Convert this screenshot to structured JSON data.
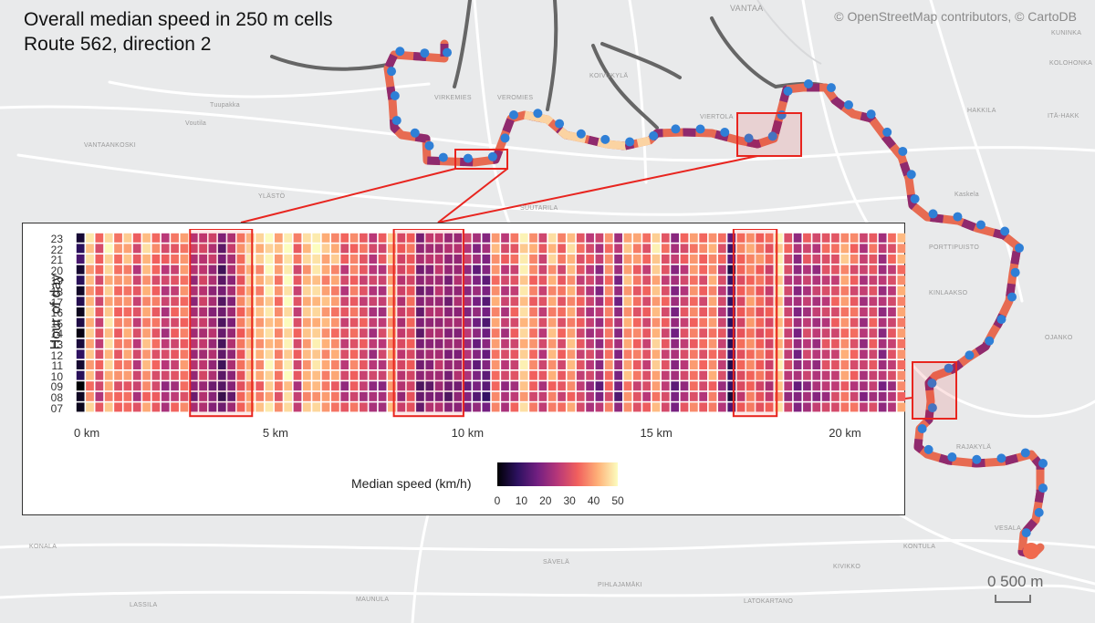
{
  "title_line1": "Overall median speed in 250 m cells",
  "title_line2": "Route 562, direction 2",
  "attribution": "© OpenStreetMap contributors, © CartoDB",
  "scale_label": "0  500 m",
  "place_names": {
    "vantaa": "VANTAA",
    "kuninkaala": "KUNINKA",
    "kolohonka": "KOLOHONKA",
    "koivukylä": "KOIVUKYLÄ",
    "virkemies": "VIRKEMIES",
    "veromies": "VEROMIES",
    "tuupakka": "Tuupakka",
    "voutila": "Voutila",
    "vantaankoski": "VANTAANKOSKI",
    "vierto la": "VIERTOLA",
    "hakkila": "HAKKILA",
    "itahakk": "ITÄ-HAKK",
    "ylasto": "YLÄSTÖ",
    "suutarila": "SUUTARILA",
    "kaskela": "Kaskela",
    "porttipuisto": "PORTTIPUISTO",
    "kinlaakso": "KINLAAKSO",
    "ojanko": "OJANKO",
    "rajakyla": "RAJAKYLÄ",
    "konala": "KONALA",
    "savela": "SÄVELÄ",
    "vesala": "VESALA",
    "kontula": "KONTULA",
    "pihlajamaki": "PIHLAJAMÄKI",
    "kivikko": "KIVIKKO",
    "lassila": "LASSILA",
    "maunula": "MAUNULA",
    "latokartano": "LATOKARTANO"
  },
  "chart_data": {
    "type": "heatmap",
    "ylabel": "Hour of day",
    "y_categories": [
      "07",
      "08",
      "09",
      "10",
      "11",
      "12",
      "13",
      "14",
      "15",
      "16",
      "17",
      "18",
      "19",
      "20",
      "21",
      "22",
      "23"
    ],
    "x_ticks": [
      {
        "km": 0,
        "label": "0 km"
      },
      {
        "km": 5,
        "label": "5 km"
      },
      {
        "km": 10,
        "label": "10 km"
      },
      {
        "km": 15,
        "label": "15 km"
      },
      {
        "km": 20,
        "label": "20 km"
      }
    ],
    "cell_size_m": 250,
    "n_cells": 88,
    "column_median_speed_kmh": [
      5,
      42,
      30,
      44,
      35,
      38,
      28,
      40,
      33,
      26,
      30,
      36,
      22,
      25,
      21,
      12,
      20,
      35,
      44,
      40,
      46,
      38,
      48,
      30,
      42,
      45,
      40,
      38,
      28,
      34,
      30,
      25,
      26,
      40,
      26,
      32,
      16,
      20,
      22,
      18,
      20,
      22,
      18,
      16,
      38,
      26,
      30,
      45,
      36,
      28,
      40,
      32,
      40,
      30,
      26,
      22,
      35,
      20,
      40,
      34,
      30,
      42,
      30,
      20,
      28,
      36,
      32,
      38,
      28,
      10,
      32,
      38,
      34,
      30,
      45,
      28,
      20,
      26,
      24,
      28,
      30,
      38,
      32,
      24,
      30,
      22,
      28,
      38
    ],
    "colorbar": {
      "title": "Median speed (km/h)",
      "ticks": [
        0,
        10,
        20,
        30,
        40,
        50
      ],
      "colormap": "magma"
    },
    "highlight_km_ranges": [
      [
        3.1,
        4.6
      ],
      [
        8.5,
        10.2
      ],
      [
        17.5,
        18.5
      ]
    ]
  },
  "colors": {
    "highlight": "#e8251f",
    "stop_marker": "#2f7fd6",
    "background_map": "#e9eaeb"
  }
}
